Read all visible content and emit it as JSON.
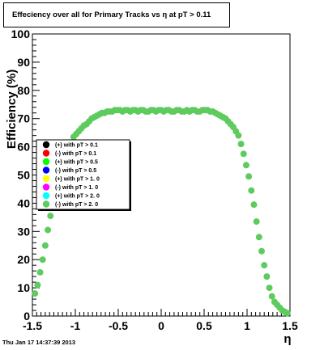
{
  "title": "Effeciency over all for Primary Tracks vs    η at pT > 0.11",
  "footer": "Thu Jan 17 14:37:39 2013",
  "chart_data": {
    "type": "scatter",
    "xlabel": "η",
    "ylabel": "Efficiency (%)",
    "xlim": [
      -1.5,
      1.5
    ],
    "ylim": [
      0,
      100
    ],
    "x_ticks": [
      "-1.5",
      "-1",
      "-0.5",
      "0",
      "0.5",
      "1",
      "1.5"
    ],
    "y_ticks": [
      "0",
      "10",
      "20",
      "30",
      "40",
      "50",
      "60",
      "70",
      "80",
      "90",
      "100"
    ],
    "grid": false,
    "legend_position": "left-middle",
    "legend": [
      {
        "label": "(+) with pT > 0.1",
        "color": "#000000"
      },
      {
        "label": "(-) with pT > 0.1",
        "color": "#ff0000"
      },
      {
        "label": "(+) with pT > 0.5",
        "color": "#00ff00"
      },
      {
        "label": "(-) with pT > 0.5",
        "color": "#0000ff"
      },
      {
        "label": "(+) with pT > 1. 0",
        "color": "#ffff00"
      },
      {
        "label": "(-) with pT > 1. 0",
        "color": "#ff00ff"
      },
      {
        "label": "(+) with pT > 2. 0",
        "color": "#00ffff"
      },
      {
        "label": "(-) with pT > 2. 0",
        "color": "#5ecb5e"
      }
    ],
    "series_color": "#5ecb5e",
    "x": [
      -1.47,
      -1.44,
      -1.41,
      -1.38,
      -1.35,
      -1.32,
      -1.29,
      -1.26,
      -1.23,
      -1.2,
      -1.17,
      -1.14,
      -1.11,
      -1.08,
      -1.05,
      -1.02,
      -0.99,
      -0.96,
      -0.93,
      -0.9,
      -0.87,
      -0.84,
      -0.81,
      -0.78,
      -0.75,
      -0.72,
      -0.69,
      -0.66,
      -0.63,
      -0.6,
      -0.57,
      -0.54,
      -0.51,
      -0.48,
      -0.45,
      -0.42,
      -0.39,
      -0.36,
      -0.33,
      -0.3,
      -0.27,
      -0.24,
      -0.21,
      -0.18,
      -0.15,
      -0.12,
      -0.09,
      -0.06,
      -0.03,
      0.0,
      0.03,
      0.06,
      0.09,
      0.12,
      0.15,
      0.18,
      0.21,
      0.24,
      0.27,
      0.3,
      0.33,
      0.36,
      0.39,
      0.42,
      0.45,
      0.48,
      0.51,
      0.54,
      0.57,
      0.6,
      0.63,
      0.66,
      0.69,
      0.72,
      0.75,
      0.78,
      0.81,
      0.84,
      0.87,
      0.9,
      0.93,
      0.96,
      0.99,
      1.02,
      1.05,
      1.08,
      1.11,
      1.14,
      1.17,
      1.2,
      1.23,
      1.26,
      1.29,
      1.32,
      1.35,
      1.38,
      1.41,
      1.44,
      1.47
    ],
    "y": [
      8.0,
      11.0,
      15.5,
      20.0,
      25.0,
      30.5,
      35.5,
      40.5,
      44.5,
      49.5,
      53.5,
      56.5,
      57.5,
      60.0,
      61.5,
      63.5,
      64.5,
      65.5,
      66.5,
      67.5,
      68.0,
      69.0,
      70.0,
      70.5,
      71.0,
      71.5,
      72.0,
      72.0,
      72.5,
      72.5,
      72.5,
      73.0,
      73.0,
      73.0,
      72.5,
      73.0,
      73.0,
      72.5,
      73.0,
      73.0,
      72.5,
      73.0,
      73.0,
      72.5,
      72.5,
      73.0,
      73.0,
      72.5,
      73.0,
      73.0,
      72.5,
      73.0,
      73.0,
      72.5,
      72.5,
      73.0,
      73.0,
      72.5,
      72.5,
      73.0,
      72.5,
      73.0,
      73.0,
      72.5,
      72.5,
      73.0,
      73.0,
      73.0,
      72.5,
      72.5,
      72.0,
      71.5,
      71.0,
      70.5,
      70.0,
      69.0,
      68.0,
      67.0,
      65.5,
      64.0,
      61.0,
      57.5,
      53.5,
      49.5,
      44.5,
      39.5,
      33.5,
      28.0,
      23.0,
      18.0,
      14.0,
      10.0,
      7.0,
      5.0,
      4.0,
      3.0,
      2.0,
      1.5,
      1.0
    ]
  }
}
